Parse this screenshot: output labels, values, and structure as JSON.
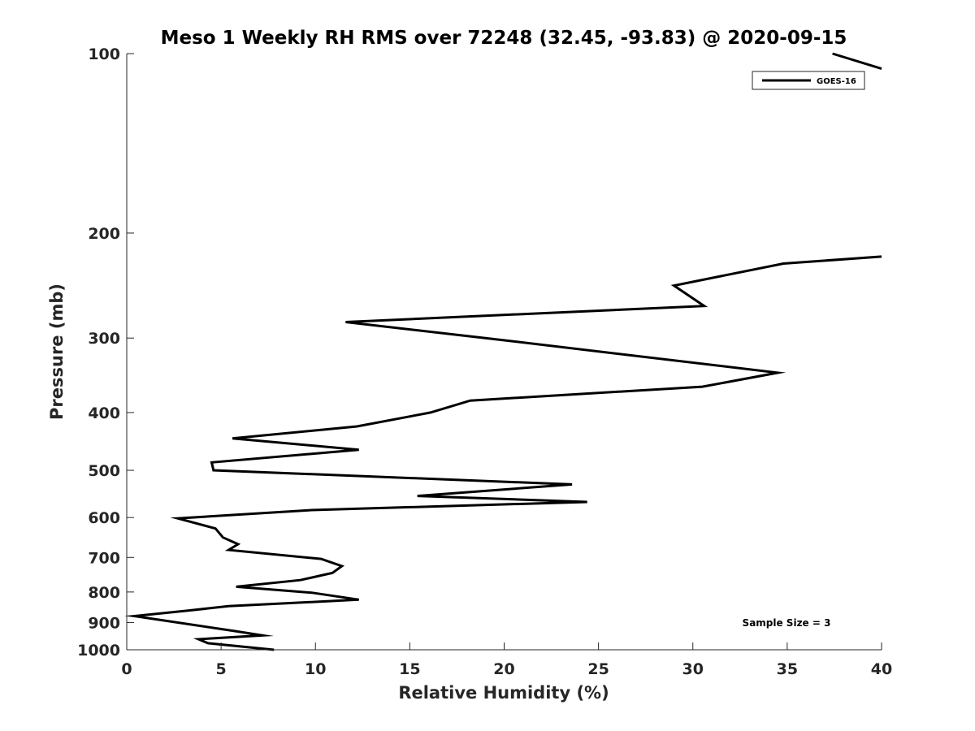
{
  "chart_data": {
    "type": "line",
    "title": "Meso 1 Weekly RH RMS over 72248 (32.45, -93.83) @ 2020-09-15",
    "xlabel": "Relative Humidity (%)",
    "ylabel": "Pressure (mb)",
    "xlim": [
      0,
      40
    ],
    "ylim": [
      100,
      1000
    ],
    "y_scale": "log",
    "y_direction": "reversed",
    "x_ticks": [
      "0",
      "5",
      "10",
      "15",
      "20",
      "25",
      "30",
      "35",
      "40"
    ],
    "y_ticks": [
      "100",
      "200",
      "300",
      "400",
      "500",
      "600",
      "700",
      "800",
      "900",
      "1000"
    ],
    "grid": false,
    "legend": {
      "position": "top-right",
      "entries": [
        "GOES-16"
      ]
    },
    "annotation": "Sample Size = 3",
    "series": [
      {
        "name": "GOES-16",
        "color": "#000000",
        "points": [
          [
            37.4,
            100
          ],
          [
            40.0,
            106
          ],
          [
            40.0,
            219
          ],
          [
            34.8,
            225
          ],
          [
            29.0,
            245
          ],
          [
            30.6,
            265
          ],
          [
            11.6,
            282
          ],
          [
            19.0,
            300
          ],
          [
            34.5,
            343
          ],
          [
            30.5,
            362
          ],
          [
            18.2,
            382
          ],
          [
            16.1,
            400
          ],
          [
            12.2,
            422
          ],
          [
            5.6,
            442
          ],
          [
            12.3,
            462
          ],
          [
            4.5,
            485
          ],
          [
            4.6,
            500
          ],
          [
            23.6,
            528
          ],
          [
            15.4,
            552
          ],
          [
            24.4,
            565
          ],
          [
            9.8,
            583
          ],
          [
            2.7,
            602
          ],
          [
            4.7,
            626
          ],
          [
            5.1,
            648
          ],
          [
            5.9,
            665
          ],
          [
            5.4,
            680
          ],
          [
            10.3,
            704
          ],
          [
            11.4,
            724
          ],
          [
            10.9,
            743
          ],
          [
            9.2,
            764
          ],
          [
            5.8,
            784
          ],
          [
            9.8,
            802
          ],
          [
            12.3,
            824
          ],
          [
            5.4,
            845
          ],
          [
            3.2,
            860
          ],
          [
            0.4,
            878
          ],
          [
            5.7,
            930
          ],
          [
            7.2,
            946
          ],
          [
            3.8,
            960
          ],
          [
            4.3,
            975
          ],
          [
            7.8,
            1000
          ]
        ]
      }
    ]
  }
}
